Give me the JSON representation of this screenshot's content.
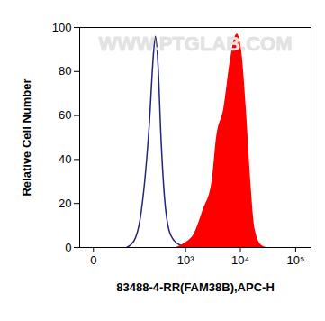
{
  "chart_data": {
    "type": "line",
    "watermark": "WWW.PTGLAB.COM",
    "x_label": "83488-4-RR(FAM38B),APC-H",
    "y_label": "Relative Cell Number",
    "log": "x",
    "grid": false,
    "xlim": [
      -17,
      190000
    ],
    "xticks": [
      0,
      {
        "value": 1000,
        "label": "10³"
      },
      {
        "value": 10000,
        "label": "10⁴"
      },
      {
        "value": 100000,
        "label": "10⁵"
      }
    ],
    "ylim": [
      0,
      100
    ],
    "yticks": [
      0,
      20,
      40,
      60,
      80,
      100
    ],
    "series": [
      {
        "type": "line",
        "color": "#22237a",
        "x": [
          66,
          97,
          132,
          164,
          202,
          248,
          269,
          304,
          343,
          402,
          488,
          618,
          809,
          1186
        ],
        "values": [
          0,
          3,
          13,
          30,
          55,
          89,
          96,
          82,
          51,
          23,
          8,
          3,
          1,
          0
        ]
      },
      {
        "type": "area",
        "color": "#ff0000",
        "x": [
          667,
          979,
          1434,
          2097,
          3058,
          3693,
          4990,
          6490,
          7830,
          8765,
          10560,
          12760,
          15400,
          18570,
          24140,
          29150
        ],
        "values": [
          0,
          2,
          6,
          17,
          30,
          50,
          63,
          84,
          95,
          97,
          89,
          63,
          30,
          8,
          1,
          0
        ]
      }
    ]
  }
}
